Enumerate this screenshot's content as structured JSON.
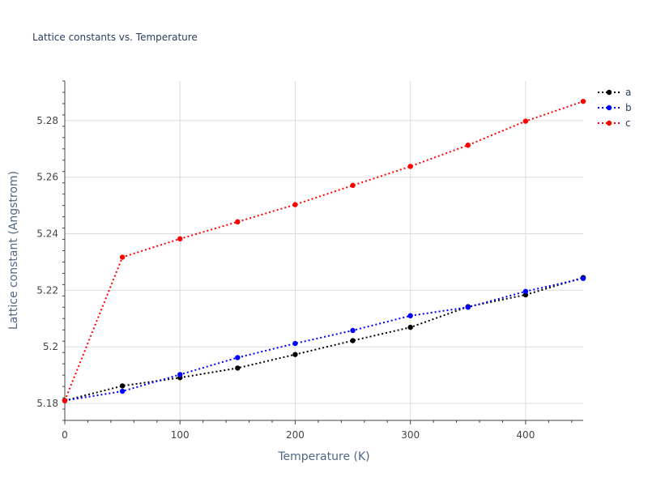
{
  "chart_data": {
    "type": "line",
    "title": "Lattice constants vs. Temperature",
    "xlabel": "Temperature (K)",
    "ylabel": "Lattice constant (Angstrom)",
    "xlim": [
      0,
      450
    ],
    "ylim": [
      5.174,
      5.294
    ],
    "x_ticks": [
      0,
      100,
      200,
      300,
      400
    ],
    "x_minor_step": 20,
    "y_ticks": [
      5.18,
      5.2,
      5.22,
      5.24,
      5.26,
      5.28
    ],
    "y_tick_labels": [
      "5.18",
      "5.2",
      "5.22",
      "5.24",
      "5.26",
      "5.28"
    ],
    "y_minor_step": 0.004,
    "grid": true,
    "legend_position": "top-right",
    "line_style": "dotted",
    "x": [
      0,
      50,
      100,
      150,
      200,
      250,
      300,
      350,
      400,
      450
    ],
    "series": [
      {
        "name": "a",
        "color": "#000000",
        "values": [
          5.181,
          5.1862,
          5.1891,
          5.1925,
          5.1973,
          5.2022,
          5.2069,
          5.2142,
          5.2184,
          5.2245
        ]
      },
      {
        "name": "b",
        "color": "#0000ff",
        "values": [
          5.181,
          5.1843,
          5.1902,
          5.1962,
          5.2012,
          5.2058,
          5.211,
          5.214,
          5.2196,
          5.2242
        ]
      },
      {
        "name": "c",
        "color": "#ff0000",
        "values": [
          5.181,
          5.2317,
          5.2382,
          5.2442,
          5.2503,
          5.2571,
          5.2638,
          5.2713,
          5.2798,
          5.2868
        ]
      }
    ]
  }
}
